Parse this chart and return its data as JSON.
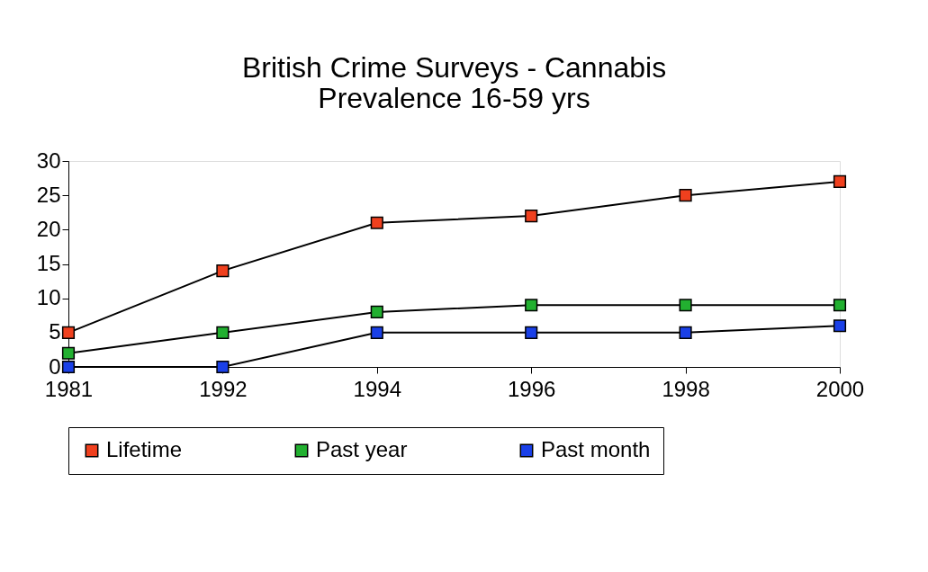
{
  "chart_data": {
    "type": "line",
    "title": "British Crime Surveys -  Cannabis\nPrevalence  16-59  yrs",
    "categories": [
      "1981",
      "1992",
      "1994",
      "1996",
      "1998",
      "2000"
    ],
    "series": [
      {
        "name": "Lifetime",
        "color": "#f0401e",
        "values": [
          5,
          14,
          21,
          22,
          25,
          27
        ]
      },
      {
        "name": "Past year",
        "color": "#22b030",
        "values": [
          2,
          5,
          8,
          9,
          9,
          9
        ]
      },
      {
        "name": "Past month",
        "color": "#1a40e8",
        "values": [
          0,
          0,
          5,
          5,
          5,
          6
        ]
      }
    ],
    "ylim": [
      0,
      30
    ],
    "yticks": [
      0,
      5,
      10,
      15,
      20,
      25,
      30
    ],
    "grid": false,
    "legend": "bottom",
    "marker": "square",
    "line_style": "solid"
  }
}
